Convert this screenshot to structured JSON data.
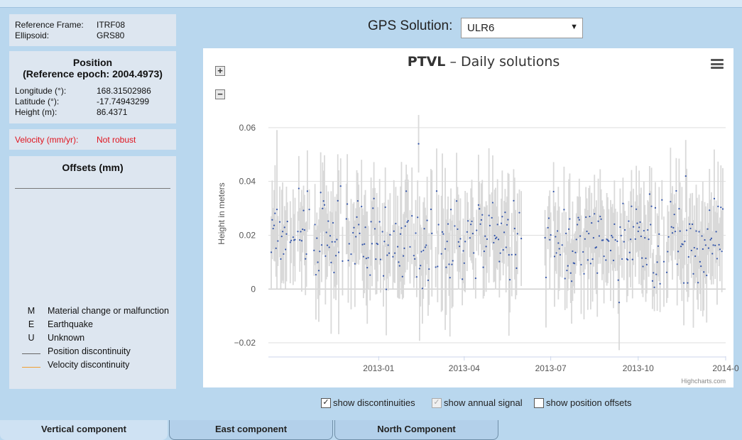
{
  "reference": {
    "frame_label": "Reference Frame:",
    "frame_value": "ITRF08",
    "ellipsoid_label": "Ellipsoid:",
    "ellipsoid_value": "GRS80"
  },
  "position": {
    "title": "Position",
    "subtitle": "(Reference epoch: 2004.4973)",
    "longitude_label": "Longitude (°):",
    "longitude_value": "168.31502986",
    "latitude_label": "Latitude (°):",
    "latitude_value": "-17.74943299",
    "height_label": "Height (m):",
    "height_value": "86.4371"
  },
  "velocity": {
    "label": "Velocity (mm/yr):",
    "value": "Not robust"
  },
  "offsets": {
    "title": "Offsets (mm)",
    "legend": [
      {
        "symbol": "M",
        "label": "Material change or malfunction"
      },
      {
        "symbol": "E",
        "label": "Earthquake"
      },
      {
        "symbol": "U",
        "label": "Unknown"
      },
      {
        "line_color": "#666666",
        "label": "Position discontinuity"
      },
      {
        "line_color": "#f0a030",
        "label": "Velocity discontinuity"
      }
    ]
  },
  "gps": {
    "label": "GPS Solution:",
    "selected": "ULR6"
  },
  "chart_data": {
    "type": "scatter",
    "title_bold": "PTVL",
    "title_rest": " – Daily solutions",
    "ylabel": "Height in meters",
    "xlabel": "",
    "x_start": "2012-09-07",
    "x_end": "2014-01-01",
    "ylim": [
      -0.025,
      0.075
    ],
    "yticks": [
      -0.02,
      0,
      0.02,
      0.04,
      0.06
    ],
    "ytick_labels": [
      "−0.02",
      "0",
      "0.02",
      "0.04",
      "0.06"
    ],
    "xticks": [
      "2013-01-01",
      "2013-04-01",
      "2013-07-01",
      "2013-10-01",
      "2014-01-01"
    ],
    "xtick_labels": [
      "2013-01",
      "2013-04",
      "2013-07",
      "2013-10",
      "2014-0"
    ],
    "gaps": [
      [
        "2013-06-01",
        "2013-06-24"
      ]
    ],
    "series": [
      {
        "name": "",
        "color": "#3355aa",
        "band_color": "#d9d9d9",
        "typical_value": 0.018,
        "error_band": "gray"
      }
    ],
    "notable_points": [
      {
        "date": "2013-02-12",
        "y": 0.054
      },
      {
        "date": "2013-09-11",
        "y": -0.005
      },
      {
        "date": "2013-11-20",
        "y": 0.042
      }
    ],
    "grid": true,
    "credit": "Highcharts.com"
  },
  "controls": {
    "show_discontinuities": {
      "label": "show discontinuities",
      "checked": true
    },
    "show_annual_signal": {
      "label": "show annual signal",
      "checked": true,
      "disabled": true
    },
    "show_position_offsets": {
      "label": "show position offsets",
      "checked": false
    }
  },
  "tabs": [
    "Vertical component",
    "East component",
    "North Component"
  ]
}
